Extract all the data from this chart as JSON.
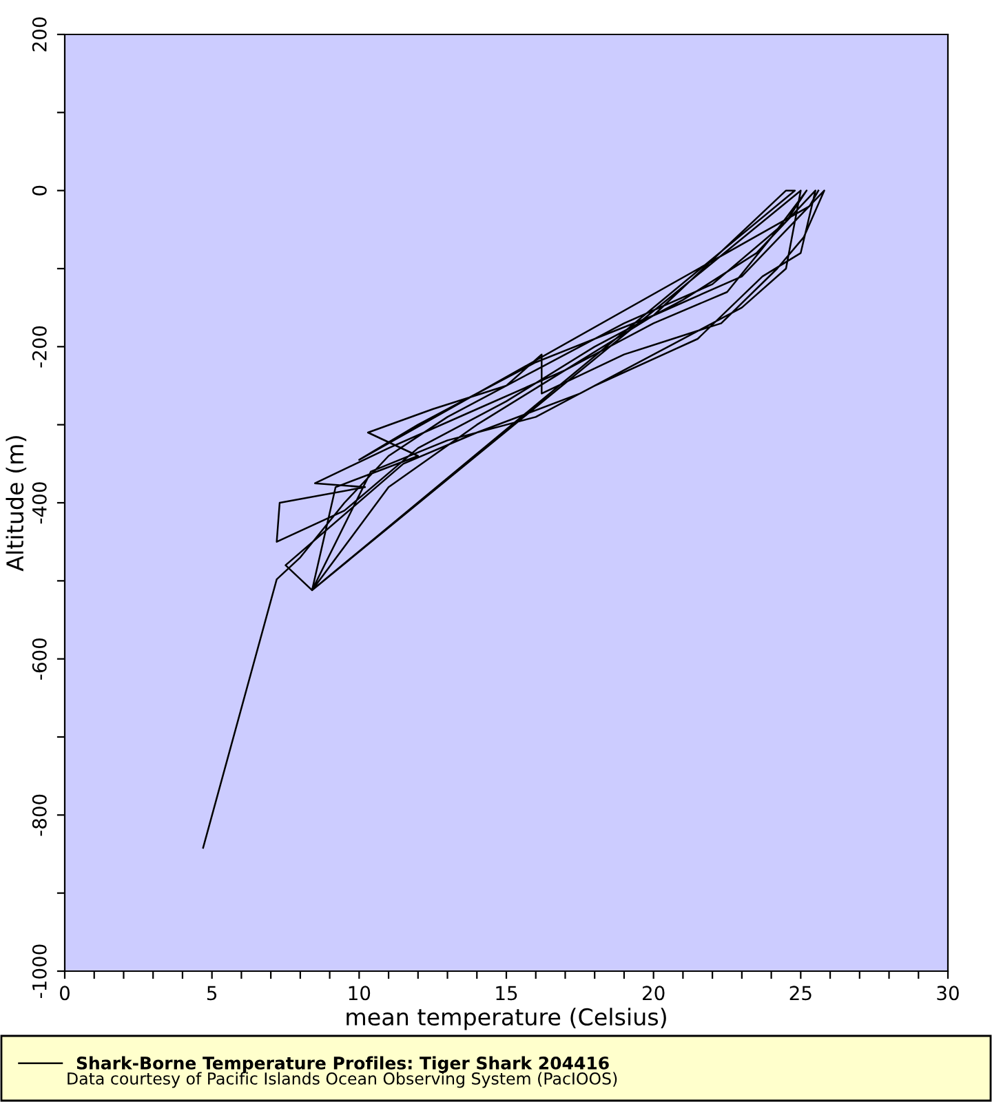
{
  "chart_data": {
    "type": "line",
    "xlabel": "mean temperature (Celsius)",
    "ylabel": "Altitude (m)",
    "annotations": [
      "Data courtesy of Pacific Islands Ocean Observing System (PacIOOS)"
    ],
    "x": [
      4.7,
      7.2,
      8.0,
      9.5,
      11.0,
      13,
      16,
      19,
      22,
      24.5,
      25.2,
      24.0,
      22.5,
      20,
      17,
      14,
      11,
      8.5,
      10.2,
      7.3,
      7.2,
      9.5,
      12,
      15,
      18,
      21,
      23.5,
      25.5,
      25,
      23.7,
      21.5,
      18,
      16,
      13,
      10.4,
      8.4,
      11,
      14,
      17,
      20,
      23,
      25.8,
      25.1,
      24.2,
      22.3,
      19,
      16.2,
      16.2,
      15,
      12.5,
      10.3,
      12,
      9.2,
      8.4,
      25.0,
      24.5,
      23.0,
      20.5,
      17.5,
      14,
      11.5,
      7.5,
      8.4,
      24.8,
      24.5,
      20,
      16,
      12,
      10,
      25.3,
      25.6
    ],
    "series": [
      {
        "name": "Shark-Borne Temperature Profiles: Tiger Shark 204416",
        "color": "#000000",
        "values": [
          -842,
          -498,
          -470,
          -400,
          -340,
          -290,
          -230,
          -170,
          -120,
          -40,
          0,
          -60,
          -130,
          -170,
          -230,
          -280,
          -330,
          -375,
          -380,
          -400,
          -450,
          -410,
          -330,
          -270,
          -200,
          -140,
          -80,
          0,
          -80,
          -110,
          -190,
          -250,
          -290,
          -320,
          -360,
          -512,
          -380,
          -300,
          -230,
          -160,
          -110,
          0,
          -60,
          -100,
          -170,
          -210,
          -260,
          -210,
          -250,
          -280,
          -310,
          -340,
          -380,
          -512,
          0,
          -100,
          -150,
          -200,
          -260,
          -310,
          -350,
          -480,
          -512,
          0,
          0,
          -160,
          -220,
          -300,
          -345,
          -20,
          0
        ]
      }
    ],
    "xlim": [
      0,
      30
    ],
    "ylim": [
      -1000,
      200
    ],
    "xticks": [
      0,
      {
        "value": 1,
        "label": null
      },
      {
        "value": 2,
        "label": null
      },
      {
        "value": 3,
        "label": null
      },
      {
        "value": 4,
        "label": null
      },
      5,
      {
        "value": 6,
        "label": null
      },
      {
        "value": 7,
        "label": null
      },
      {
        "value": 8,
        "label": null
      },
      {
        "value": 9,
        "label": null
      },
      10,
      {
        "value": 11,
        "label": null
      },
      {
        "value": 12,
        "label": null
      },
      {
        "value": 13,
        "label": null
      },
      {
        "value": 14,
        "label": null
      },
      15,
      {
        "value": 16,
        "label": null
      },
      {
        "value": 17,
        "label": null
      },
      {
        "value": 18,
        "label": null
      },
      {
        "value": 19,
        "label": null
      },
      20,
      {
        "value": 21,
        "label": null
      },
      {
        "value": 22,
        "label": null
      },
      {
        "value": 23,
        "label": null
      },
      {
        "value": 24,
        "label": null
      },
      25,
      {
        "value": 26,
        "label": null
      },
      {
        "value": 27,
        "label": null
      },
      {
        "value": 28,
        "label": null
      },
      {
        "value": 29,
        "label": null
      },
      30
    ],
    "yticks": [
      -1000,
      {
        "value": -900,
        "label": null
      },
      -800,
      {
        "value": -700,
        "label": null
      },
      -600,
      {
        "value": -500,
        "label": null
      },
      -400,
      {
        "value": -300,
        "label": null
      },
      -200,
      {
        "value": -100,
        "label": null
      },
      0,
      {
        "value": 100,
        "label": null
      },
      200
    ],
    "legend": "bottom",
    "grid": false,
    "line_style": "solid",
    "marker": "none"
  }
}
